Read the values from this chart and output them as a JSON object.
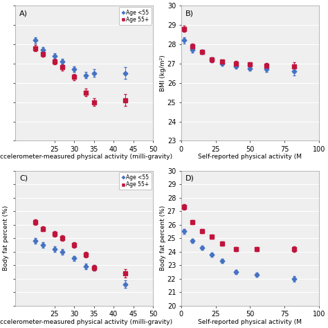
{
  "panel_A": {
    "label": "A)",
    "blue_x": [
      20,
      22,
      25,
      27,
      30,
      33,
      35,
      43
    ],
    "blue_y": [
      28.2,
      27.7,
      27.4,
      27.1,
      26.7,
      26.4,
      26.5,
      26.5
    ],
    "red_x": [
      20,
      22,
      25,
      27,
      30,
      33,
      35,
      43
    ],
    "red_y": [
      27.8,
      27.5,
      27.1,
      26.8,
      26.3,
      25.5,
      25.0,
      25.1
    ],
    "blue_yerr": [
      0.15,
      0.15,
      0.15,
      0.15,
      0.15,
      0.15,
      0.2,
      0.3
    ],
    "red_yerr": [
      0.15,
      0.15,
      0.15,
      0.15,
      0.15,
      0.2,
      0.2,
      0.3
    ],
    "xlabel": "Accelerometer-measured physical activity (milli-gravity)",
    "ylabel": "",
    "xlim": [
      15,
      50
    ],
    "ylim": [
      23,
      30
    ],
    "xticks": [
      25,
      30,
      35,
      40,
      45,
      50
    ],
    "yticks": [
      23,
      24,
      25,
      26,
      27,
      28,
      29,
      30
    ],
    "show_legend": true,
    "hide_yticklabels": true
  },
  "panel_B": {
    "label": "B)",
    "blue_x": [
      2,
      8,
      15,
      22,
      30,
      40,
      50,
      62,
      82
    ],
    "blue_y": [
      28.2,
      27.7,
      27.6,
      27.2,
      27.0,
      26.85,
      26.75,
      26.7,
      26.6
    ],
    "red_x": [
      2,
      8,
      15,
      22,
      30,
      40,
      50,
      62,
      82
    ],
    "red_y": [
      28.8,
      27.9,
      27.6,
      27.2,
      27.1,
      27.0,
      26.95,
      26.9,
      26.85
    ],
    "blue_yerr": [
      0.15,
      0.12,
      0.12,
      0.12,
      0.12,
      0.12,
      0.12,
      0.12,
      0.2
    ],
    "red_yerr": [
      0.15,
      0.12,
      0.12,
      0.12,
      0.12,
      0.12,
      0.12,
      0.12,
      0.2
    ],
    "xlabel": "Self-reported physical activity (M",
    "ylabel": "BMI (kg/m²)",
    "xlim": [
      0,
      100
    ],
    "ylim": [
      23,
      30
    ],
    "xticks": [
      0,
      25,
      50,
      75,
      100
    ],
    "yticks": [
      23,
      24,
      25,
      26,
      27,
      28,
      29,
      30
    ],
    "show_legend": false,
    "hide_yticklabels": false
  },
  "panel_C": {
    "label": "C)",
    "blue_x": [
      20,
      22,
      25,
      27,
      30,
      33,
      35,
      43
    ],
    "blue_y": [
      24.8,
      24.5,
      24.2,
      24.0,
      23.5,
      22.9,
      22.8,
      21.6
    ],
    "red_x": [
      20,
      22,
      25,
      27,
      30,
      33,
      35,
      43
    ],
    "red_y": [
      26.2,
      25.7,
      25.3,
      25.0,
      24.5,
      23.8,
      22.8,
      22.4
    ],
    "blue_yerr": [
      0.2,
      0.2,
      0.2,
      0.2,
      0.2,
      0.2,
      0.2,
      0.3
    ],
    "red_yerr": [
      0.2,
      0.2,
      0.2,
      0.2,
      0.2,
      0.2,
      0.2,
      0.3
    ],
    "xlabel": "Accelerometer-measured physical activity (milli-gravity)",
    "ylabel": "Body fat percent (%)",
    "xlim": [
      15,
      50
    ],
    "ylim": [
      20,
      30
    ],
    "xticks": [
      25,
      30,
      35,
      40,
      45,
      50
    ],
    "yticks": [
      20,
      21,
      22,
      23,
      24,
      25,
      26,
      27,
      28,
      29,
      30
    ],
    "show_legend": true,
    "hide_yticklabels": true
  },
  "panel_D": {
    "label": "D)",
    "blue_x": [
      2,
      8,
      15,
      22,
      30,
      40,
      55,
      82
    ],
    "blue_y": [
      25.5,
      24.8,
      24.3,
      23.8,
      23.3,
      22.5,
      22.3,
      22.0
    ],
    "red_x": [
      2,
      8,
      15,
      22,
      30,
      40,
      55,
      82
    ],
    "red_y": [
      27.3,
      26.2,
      25.5,
      25.1,
      24.6,
      24.2,
      24.2,
      24.2
    ],
    "blue_yerr": [
      0.2,
      0.15,
      0.15,
      0.15,
      0.15,
      0.15,
      0.15,
      0.2
    ],
    "red_yerr": [
      0.2,
      0.15,
      0.15,
      0.15,
      0.15,
      0.15,
      0.15,
      0.2
    ],
    "xlabel": "Self-reported physical activity (M",
    "ylabel": "Body fat percent (%)",
    "xlim": [
      0,
      100
    ],
    "ylim": [
      20,
      30
    ],
    "xticks": [
      0,
      25,
      50,
      75,
      100
    ],
    "yticks": [
      20,
      21,
      22,
      23,
      24,
      25,
      26,
      27,
      28,
      29,
      30
    ],
    "show_legend": false,
    "hide_yticklabels": false
  },
  "blue_color": "#4472C4",
  "red_color": "#C0143C",
  "bg_color": "#EFEFEF",
  "legend_blue_label": "Age <55",
  "legend_red_label": "Age 55+",
  "tick_fontsize": 7,
  "label_fontsize": 6.5,
  "panel_label_fontsize": 8
}
